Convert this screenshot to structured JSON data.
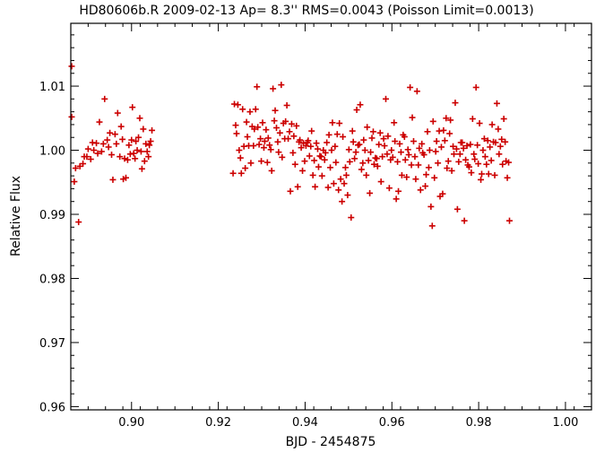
{
  "chart_data": {
    "type": "scatter",
    "title": "HD80606b.R 2009-02-13 Ap= 8.3'' RMS=0.0043 (Poisson Limit=0.0013)",
    "xlabel": "BJD - 2454875",
    "ylabel": "Relative Flux",
    "xlim": [
      0.886,
      1.006
    ],
    "ylim": [
      0.9595,
      1.0198
    ],
    "x_ticks": [
      0.9,
      0.92,
      0.94,
      0.96,
      0.98,
      1.0
    ],
    "x_tick_labels": [
      "0.90",
      "0.92",
      "0.94",
      "0.96",
      "0.98",
      "1.00"
    ],
    "y_ticks": [
      0.96,
      0.97,
      0.98,
      0.99,
      1.0,
      1.01
    ],
    "y_tick_labels": [
      "0.96",
      "0.97",
      "0.98",
      "0.99",
      "1.00",
      "1.01"
    ],
    "marker": "plus",
    "marker_color": "#cc0000",
    "series": [
      {
        "points": [
          [
            0.8862,
            1.0131
          ],
          [
            0.8862,
            1.0052
          ],
          [
            0.8868,
            0.9951
          ],
          [
            0.8871,
            0.9972
          ],
          [
            0.8878,
            0.9888
          ],
          [
            0.8881,
            0.9975
          ],
          [
            0.8888,
            0.9979
          ],
          [
            0.8891,
            0.999
          ],
          [
            0.8897,
            0.999
          ],
          [
            0.89,
            1.0002
          ],
          [
            0.8906,
            0.9986
          ],
          [
            0.891,
            1.0012
          ],
          [
            0.8913,
            1.0
          ],
          [
            0.8919,
            1.0011
          ],
          [
            0.8922,
            0.9995
          ],
          [
            0.8926,
            1.0044
          ],
          [
            0.8931,
            0.9998
          ],
          [
            0.8935,
            1.001
          ],
          [
            0.8938,
            1.008
          ],
          [
            0.8944,
            1.0016
          ],
          [
            0.8947,
            1.0005
          ],
          [
            0.895,
            1.0027
          ],
          [
            0.8954,
            0.9993
          ],
          [
            0.8957,
            0.9954
          ],
          [
            0.8962,
            1.0025
          ],
          [
            0.8965,
            1.001
          ],
          [
            0.8968,
            1.0058
          ],
          [
            0.8973,
            0.999
          ],
          [
            0.8976,
            1.0037
          ],
          [
            0.8979,
            1.0017
          ],
          [
            0.8981,
            0.9955
          ],
          [
            0.8984,
            0.9987
          ],
          [
            0.8987,
            0.9957
          ],
          [
            0.8991,
            0.9985
          ],
          [
            0.8994,
            1.0008
          ],
          [
            0.8997,
            0.9994
          ],
          [
            0.9,
            1.0016
          ],
          [
            0.9002,
            1.0067
          ],
          [
            0.9005,
            0.9995
          ],
          [
            0.9008,
            0.9987
          ],
          [
            0.901,
            1.0014
          ],
          [
            0.9013,
            1.0
          ],
          [
            0.9016,
            1.002
          ],
          [
            0.9019,
            1.005
          ],
          [
            0.9022,
            0.9998
          ],
          [
            0.9024,
            0.9971
          ],
          [
            0.9027,
            1.0033
          ],
          [
            0.903,
            0.9983
          ],
          [
            0.9033,
            1.001
          ],
          [
            0.9036,
            0.9998
          ],
          [
            0.9039,
            0.999
          ],
          [
            0.9041,
            1.0008
          ],
          [
            0.9044,
            1.0014
          ],
          [
            0.9047,
            1.0031
          ],
          [
            0.9234,
            0.9964
          ],
          [
            0.9237,
            1.0072
          ],
          [
            0.924,
            1.0039
          ],
          [
            0.9242,
            1.0026
          ],
          [
            0.9245,
            1.0071
          ],
          [
            0.9248,
            1.0
          ],
          [
            0.9251,
            0.9988
          ],
          [
            0.9253,
            0.9964
          ],
          [
            0.9256,
            1.0064
          ],
          [
            0.9259,
            1.0006
          ],
          [
            0.9262,
            0.9972
          ],
          [
            0.9265,
            1.0044
          ],
          [
            0.9267,
            1.0021
          ],
          [
            0.927,
            1.0007
          ],
          [
            0.9273,
            1.006
          ],
          [
            0.9275,
            0.998
          ],
          [
            0.9278,
            1.0037
          ],
          [
            0.9281,
            1.0007
          ],
          [
            0.9283,
            1.0033
          ],
          [
            0.9286,
            1.0064
          ],
          [
            0.9289,
            1.0099
          ],
          [
            0.9291,
            1.0036
          ],
          [
            0.9294,
            1.0009
          ],
          [
            0.9297,
            1.0018
          ],
          [
            0.9299,
            0.9983
          ],
          [
            0.9302,
            1.0043
          ],
          [
            0.9305,
            1.0004
          ],
          [
            0.9307,
            1.0014
          ],
          [
            0.931,
            1.0032
          ],
          [
            0.9313,
            0.9981
          ],
          [
            0.9315,
            1.0019
          ],
          [
            0.9318,
            1.0008
          ],
          [
            0.9321,
            1.0001
          ],
          [
            0.9323,
            0.9968
          ],
          [
            0.9326,
            1.0096
          ],
          [
            0.9329,
            1.0046
          ],
          [
            0.9331,
            1.0062
          ],
          [
            0.9334,
            1.0035
          ],
          [
            0.9337,
            1.0013
          ],
          [
            0.9339,
            0.9997
          ],
          [
            0.9342,
            1.0027
          ],
          [
            0.9345,
            1.0102
          ],
          [
            0.9347,
            0.9989
          ],
          [
            0.935,
            1.0042
          ],
          [
            0.9353,
            1.0018
          ],
          [
            0.9355,
            1.0045
          ],
          [
            0.9358,
            1.007
          ],
          [
            0.9361,
            1.0018
          ],
          [
            0.9364,
            1.0029
          ],
          [
            0.9366,
            0.9936
          ],
          [
            0.9369,
            1.0041
          ],
          [
            0.9372,
            0.9996
          ],
          [
            0.9374,
            1.0022
          ],
          [
            0.9377,
            0.9978
          ],
          [
            0.938,
            1.0038
          ],
          [
            0.9383,
            0.9943
          ],
          [
            0.9386,
            1.0013
          ],
          [
            0.9388,
            1.0016
          ],
          [
            0.9391,
            1.0004
          ],
          [
            0.9394,
            0.9968
          ],
          [
            0.9396,
            1.0011
          ],
          [
            0.9399,
            0.9983
          ],
          [
            0.9402,
            1.0007
          ],
          [
            0.9405,
            1.0012
          ],
          [
            0.9407,
            1.0015
          ],
          [
            0.941,
            0.9991
          ],
          [
            0.9413,
            1.0006
          ],
          [
            0.9415,
            1.003
          ],
          [
            0.9418,
            0.9961
          ],
          [
            0.9421,
            0.9984
          ],
          [
            0.9423,
            0.9943
          ],
          [
            0.9426,
            1.0011
          ],
          [
            0.9429,
            1.0002
          ],
          [
            0.9431,
            0.9974
          ],
          [
            0.9434,
            0.9991
          ],
          [
            0.9437,
            0.999
          ],
          [
            0.9439,
            0.996
          ],
          [
            0.9442,
            1.0
          ],
          [
            0.9445,
            0.9985
          ],
          [
            0.9447,
            0.9996
          ],
          [
            0.945,
            1.0012
          ],
          [
            0.9453,
            0.9942
          ],
          [
            0.9455,
            1.0024
          ],
          [
            0.9458,
            0.9973
          ],
          [
            0.9461,
            1.0
          ],
          [
            0.9463,
            1.0043
          ],
          [
            0.9466,
            0.9948
          ],
          [
            0.9469,
            1.0006
          ],
          [
            0.9471,
            0.9981
          ],
          [
            0.9474,
            1.0025
          ],
          [
            0.9477,
            0.9938
          ],
          [
            0.9479,
            1.0042
          ],
          [
            0.9482,
            0.9955
          ],
          [
            0.9485,
            0.992
          ],
          [
            0.9487,
            1.0021
          ],
          [
            0.949,
            0.9948
          ],
          [
            0.9493,
            0.9973
          ],
          [
            0.9495,
            0.9961
          ],
          [
            0.9498,
            0.993
          ],
          [
            0.9501,
            1.0001
          ],
          [
            0.9503,
            0.9982
          ],
          [
            0.9506,
            0.9895
          ],
          [
            0.9509,
            1.003
          ],
          [
            0.9511,
            1.0013
          ],
          [
            0.9514,
            0.9987
          ],
          [
            0.9517,
            0.9997
          ],
          [
            0.9519,
            1.0063
          ],
          [
            0.9522,
            1.0008
          ],
          [
            0.9525,
            1.0009
          ],
          [
            0.9527,
            1.0071
          ],
          [
            0.953,
            0.997
          ],
          [
            0.9533,
            0.998
          ],
          [
            0.9535,
            1.0016
          ],
          [
            0.9538,
            1.0
          ],
          [
            0.9541,
            0.9961
          ],
          [
            0.9543,
            1.0036
          ],
          [
            0.9546,
            0.9984
          ],
          [
            0.9549,
            0.9933
          ],
          [
            0.9551,
            0.9997
          ],
          [
            0.9554,
            1.0019
          ],
          [
            0.9557,
            1.0029
          ],
          [
            0.9559,
            0.9978
          ],
          [
            0.9562,
            0.9988
          ],
          [
            0.9565,
            0.9987
          ],
          [
            0.9567,
            0.9975
          ],
          [
            0.957,
            1.0009
          ],
          [
            0.9573,
            1.0027
          ],
          [
            0.9575,
            0.9951
          ],
          [
            0.9578,
            0.999
          ],
          [
            0.9581,
            1.0018
          ],
          [
            0.9583,
            1.0007
          ],
          [
            0.9586,
            1.008
          ],
          [
            0.9589,
            0.9994
          ],
          [
            0.9591,
            1.0022
          ],
          [
            0.9594,
            0.9941
          ],
          [
            0.9597,
            0.9985
          ],
          [
            0.9599,
            1.0
          ],
          [
            0.9602,
            0.9989
          ],
          [
            0.9605,
            1.0043
          ],
          [
            0.9607,
            1.0014
          ],
          [
            0.961,
            0.9924
          ],
          [
            0.9613,
            0.9982
          ],
          [
            0.9615,
            0.9936
          ],
          [
            0.9618,
            1.001
          ],
          [
            0.9621,
            0.9997
          ],
          [
            0.9623,
            0.9961
          ],
          [
            0.9626,
            1.0024
          ],
          [
            0.9629,
            1.0021
          ],
          [
            0.9631,
            0.9985
          ],
          [
            0.9634,
            0.9958
          ],
          [
            0.9637,
            1.0001
          ],
          [
            0.9639,
            0.9993
          ],
          [
            0.9642,
            1.0098
          ],
          [
            0.9645,
            0.9977
          ],
          [
            0.9647,
            1.0051
          ],
          [
            0.965,
            1.0014
          ],
          [
            0.9653,
            0.999
          ],
          [
            0.9655,
            0.9955
          ],
          [
            0.9658,
            1.0092
          ],
          [
            0.9661,
            0.9977
          ],
          [
            0.9663,
            1.0003
          ],
          [
            0.9666,
            0.9938
          ],
          [
            0.9669,
            1.001
          ],
          [
            0.9671,
            0.9996
          ],
          [
            0.9674,
            0.9993
          ],
          [
            0.9677,
            0.9944
          ],
          [
            0.9679,
            0.9962
          ],
          [
            0.9682,
            1.0029
          ],
          [
            0.9685,
            0.9973
          ],
          [
            0.9687,
            1.0
          ],
          [
            0.969,
            0.9912
          ],
          [
            0.9693,
            0.9882
          ],
          [
            0.9695,
            1.0045
          ],
          [
            0.9698,
            0.9957
          ],
          [
            0.9701,
            0.9998
          ],
          [
            0.9703,
            1.0014
          ],
          [
            0.9706,
            0.998
          ],
          [
            0.9709,
            1.003
          ],
          [
            0.9711,
            0.9928
          ],
          [
            0.9714,
            1.0005
          ],
          [
            0.9717,
            0.9932
          ],
          [
            0.9719,
            1.0031
          ],
          [
            0.9722,
            1.0015
          ],
          [
            0.9725,
            1.005
          ],
          [
            0.9727,
            0.9972
          ],
          [
            0.973,
            0.9983
          ],
          [
            0.9733,
            1.0026
          ],
          [
            0.9735,
            1.0047
          ],
          [
            0.9738,
            0.9968
          ],
          [
            0.9741,
            1.0006
          ],
          [
            0.9743,
            0.9994
          ],
          [
            0.9746,
            1.0074
          ],
          [
            0.9749,
            1.0002
          ],
          [
            0.9751,
            0.9908
          ],
          [
            0.9754,
            0.9982
          ],
          [
            0.9757,
            0.9994
          ],
          [
            0.9759,
            1.0012
          ],
          [
            0.9762,
            1.0012
          ],
          [
            0.9765,
            1.0003
          ],
          [
            0.9767,
            0.989
          ],
          [
            0.977,
            0.9985
          ],
          [
            0.9773,
            1.0007
          ],
          [
            0.9775,
            0.9977
          ],
          [
            0.9778,
            0.9974
          ],
          [
            0.9781,
            1.0009
          ],
          [
            0.9783,
            0.9965
          ],
          [
            0.9786,
            1.0049
          ],
          [
            0.9789,
            0.9994
          ],
          [
            0.9791,
            0.9986
          ],
          [
            0.9794,
            1.0098
          ],
          [
            0.9797,
            1.0008
          ],
          [
            0.9799,
            0.9979
          ],
          [
            0.9802,
            1.0042
          ],
          [
            0.9805,
            0.9954
          ],
          [
            0.9807,
            0.9963
          ],
          [
            0.981,
            1.0
          ],
          [
            0.9813,
            1.0018
          ],
          [
            0.9815,
            0.999
          ],
          [
            0.9818,
            0.9978
          ],
          [
            0.9821,
            1.0015
          ],
          [
            0.9823,
            0.9963
          ],
          [
            0.9826,
            1.0005
          ],
          [
            0.9829,
            0.9984
          ],
          [
            0.9831,
            1.004
          ],
          [
            0.9834,
            1.0013
          ],
          [
            0.9837,
            0.9961
          ],
          [
            0.9839,
            1.0012
          ],
          [
            0.9842,
            1.0073
          ],
          [
            0.9845,
            1.0033
          ],
          [
            0.9847,
            0.9994
          ],
          [
            0.985,
            1.0006
          ],
          [
            0.9853,
            1.0017
          ],
          [
            0.9855,
            0.9978
          ],
          [
            0.9858,
            1.0049
          ],
          [
            0.9861,
            1.0013
          ],
          [
            0.9863,
            0.9983
          ],
          [
            0.9866,
            0.9957
          ],
          [
            0.9869,
            0.9981
          ],
          [
            0.9871,
            0.989
          ]
        ]
      }
    ]
  }
}
